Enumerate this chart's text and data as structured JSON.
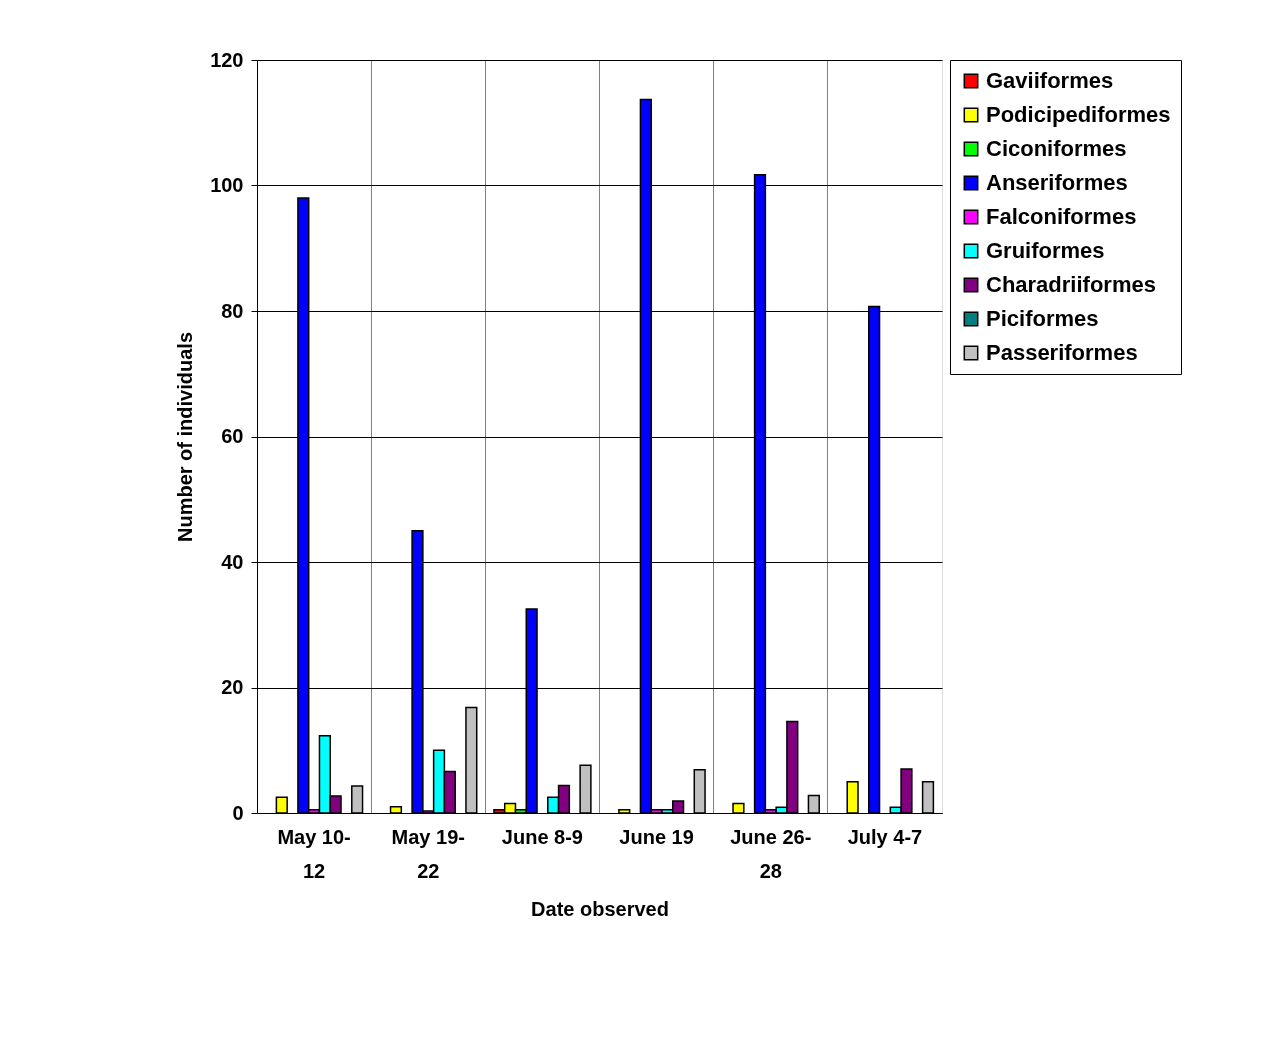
{
  "chart_data": {
    "type": "bar",
    "xlabel": "Date observed",
    "ylabel": "Number of individuals",
    "categories": [
      "May 10-12",
      "May 19-22",
      "June 8-9",
      "June 19",
      "June 26-28",
      "July 4-7"
    ],
    "series": [
      {
        "name": "Gaviiformes",
        "color": "#ff0000",
        "values": [
          null,
          null,
          0.5,
          null,
          null,
          null
        ]
      },
      {
        "name": "Podicipediformes",
        "color": "#ffff00",
        "values": [
          2.5,
          1,
          1.5,
          0.5,
          1.5,
          5
        ]
      },
      {
        "name": "Ciconiformes",
        "color": "#00ff00",
        "values": [
          null,
          null,
          0.5,
          null,
          null,
          null
        ]
      },
      {
        "name": "Anseriformes",
        "color": "#0000ff",
        "values": [
          98,
          45,
          32.5,
          113.7,
          101.7,
          80.7
        ]
      },
      {
        "name": "Falconiformes",
        "color": "#ff00ff",
        "values": [
          0.5,
          0.3,
          null,
          0.5,
          0.5,
          null
        ]
      },
      {
        "name": "Gruiformes",
        "color": "#00ffff",
        "values": [
          12.3,
          10,
          2.5,
          0.5,
          0.9,
          0.9
        ]
      },
      {
        "name": "Charadriiformes",
        "color": "#800080",
        "values": [
          2.7,
          6.6,
          4.4,
          1.9,
          14.6,
          7
        ]
      },
      {
        "name": "Piciformes",
        "color": "#008080",
        "values": [
          null,
          null,
          null,
          null,
          null,
          null
        ]
      },
      {
        "name": "Passeriformes",
        "color": "#c0c0c0",
        "values": [
          4.3,
          16.8,
          7.6,
          6.9,
          2.8,
          5
        ]
      }
    ],
    "ylim": [
      0,
      120
    ],
    "yticks": [
      0,
      20,
      40,
      60,
      80,
      100,
      120
    ],
    "grid": true,
    "legend": "right"
  }
}
